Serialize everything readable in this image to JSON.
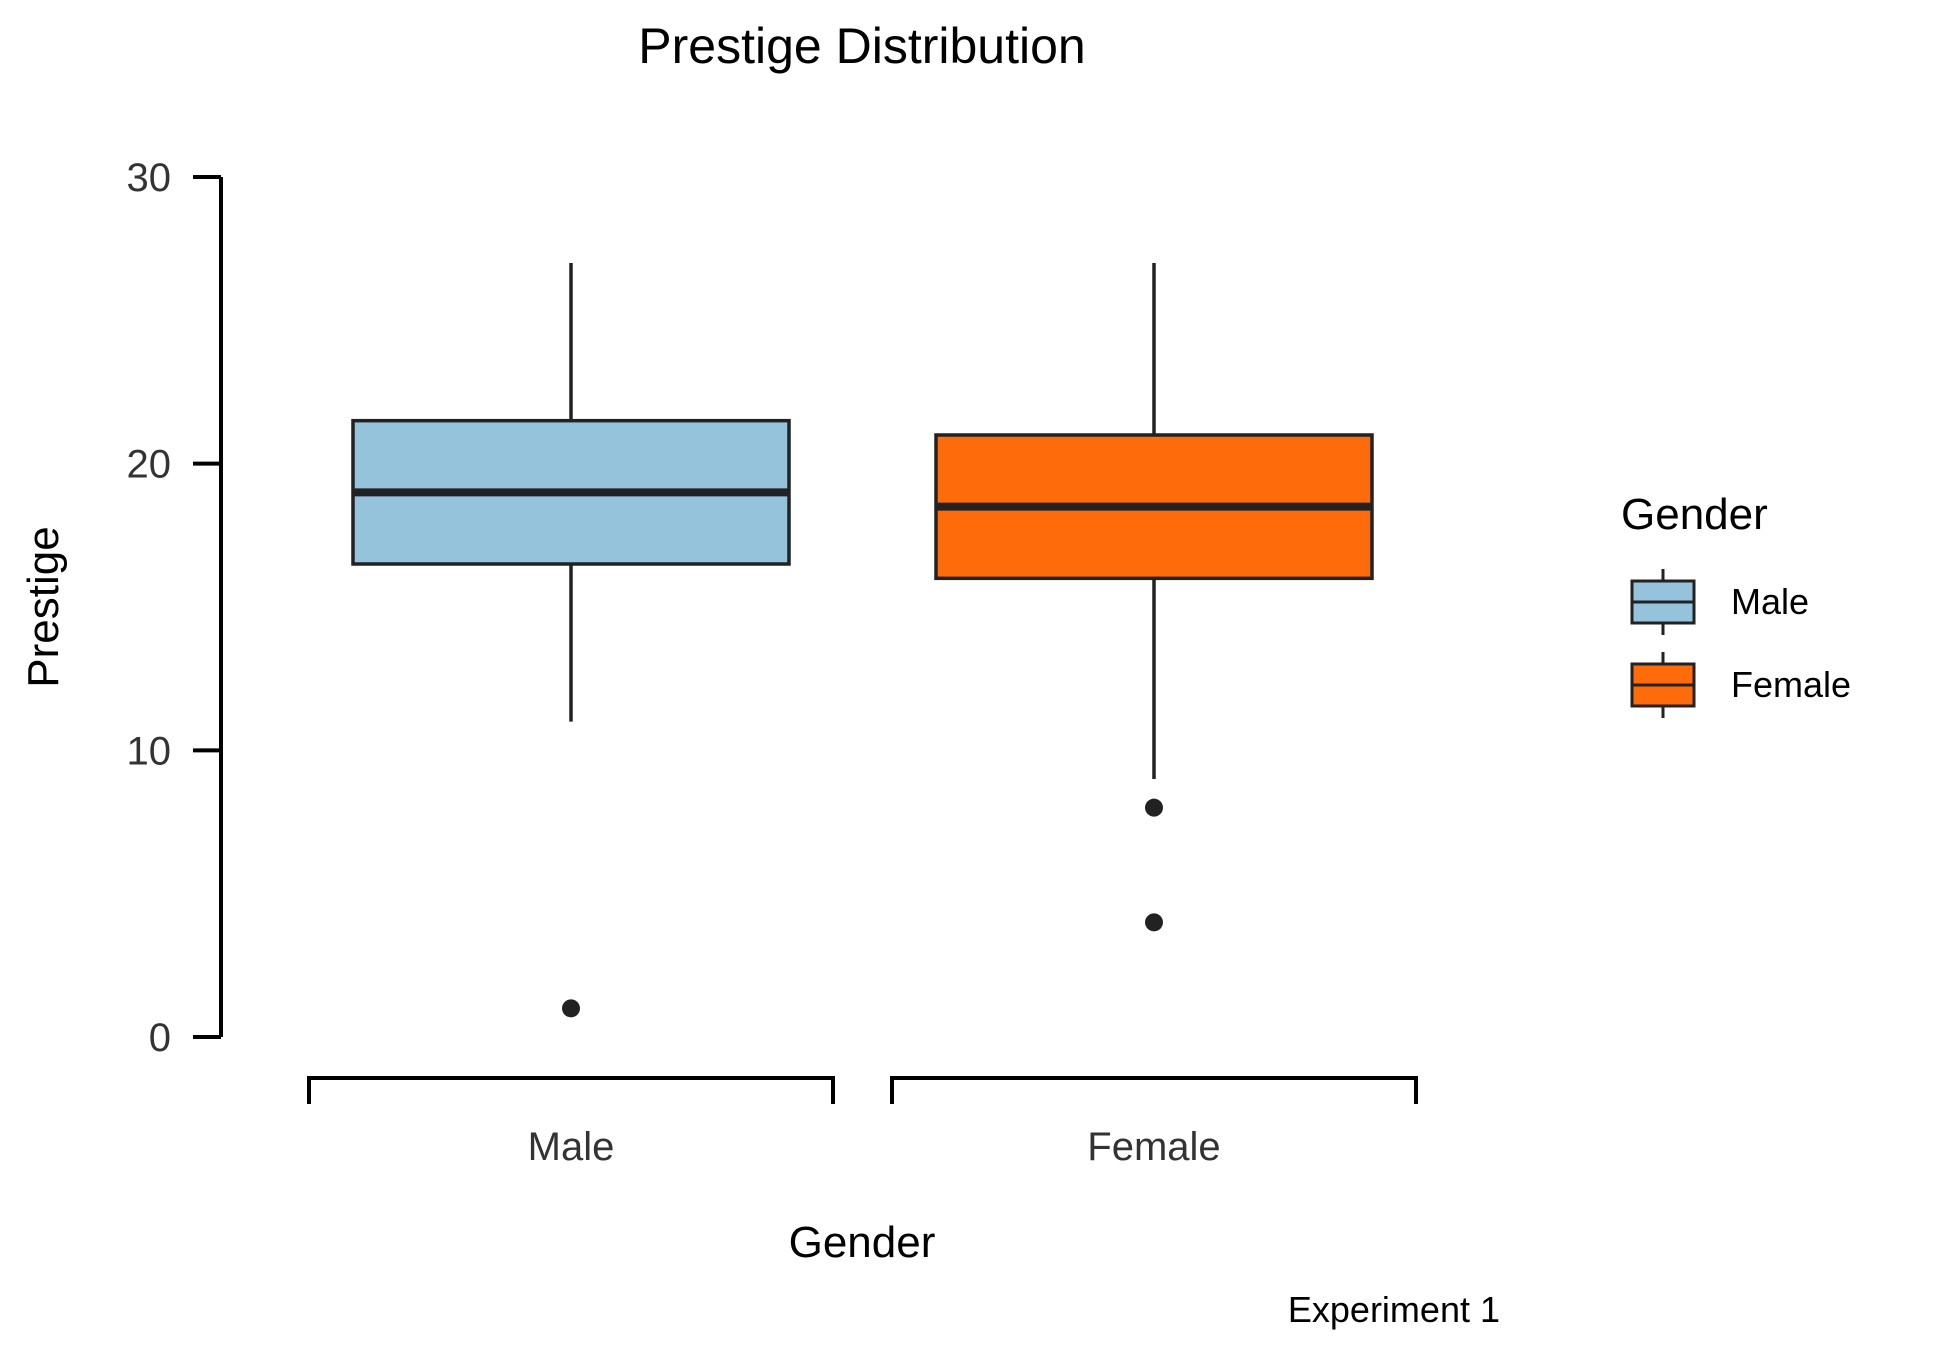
{
  "chart_data": {
    "type": "boxplot",
    "title": "Prestige Distribution",
    "xlabel": "Gender",
    "ylabel": "Prestige",
    "caption": "Experiment 1",
    "ylim": [
      0,
      30
    ],
    "yticks": [
      0,
      10,
      20,
      30
    ],
    "grid": false,
    "legend": {
      "title": "Gender",
      "placement": "right"
    },
    "categories": [
      "Male",
      "Female"
    ],
    "series": [
      {
        "name": "Male",
        "color": "#96c3dc",
        "whisker_low": 11,
        "q1": 16.5,
        "median": 19,
        "q3": 21.5,
        "whisker_high": 27,
        "outliers": [
          1
        ]
      },
      {
        "name": "Female",
        "color": "#fd6b0b",
        "whisker_low": 9,
        "q1": 16,
        "median": 18.5,
        "q3": 21,
        "whisker_high": 27,
        "outliers": [
          8,
          4
        ]
      }
    ]
  }
}
